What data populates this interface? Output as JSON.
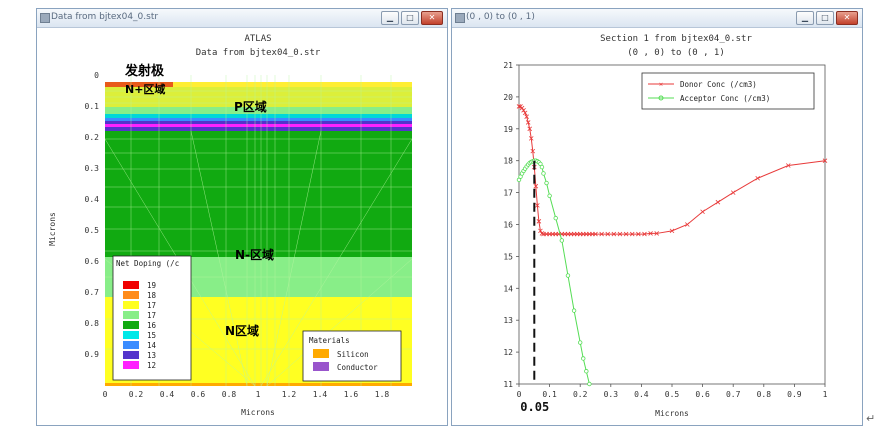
{
  "left_window": {
    "title": "Data from bjtex04_0.str",
    "plot_title": "ATLAS",
    "plot_subtitle": "Data from bjtex04_0.str",
    "xlabel": "Microns",
    "ylabel": "Microns",
    "x_ticks": [
      "0",
      "0.2",
      "0.4",
      "0.6",
      "0.8",
      "1",
      "1.2",
      "1.4",
      "1.6",
      "1.8"
    ],
    "y_ticks": [
      "0",
      "0.1",
      "0.2",
      "0.3",
      "0.4",
      "0.5",
      "0.6",
      "0.7",
      "0.8",
      "0.9"
    ],
    "annotations": {
      "emitter": "发射极",
      "n_plus": "N+区域",
      "p_region": "P区域",
      "n_minus": "N-区域",
      "n_region": "N区域"
    },
    "doping_legend": {
      "title": "Net Doping (/c",
      "items": [
        {
          "label": "19",
          "color": "#f00000"
        },
        {
          "label": "18",
          "color": "#ff8c1a"
        },
        {
          "label": "17",
          "color": "#ffff22"
        },
        {
          "label": "17",
          "color": "#88ee88"
        },
        {
          "label": "16",
          "color": "#11aa11"
        },
        {
          "label": "15",
          "color": "#00e8e8"
        },
        {
          "label": "14",
          "color": "#3b8cff"
        },
        {
          "label": "13",
          "color": "#5533cc"
        },
        {
          "label": "12",
          "color": "#ff22ff"
        }
      ]
    },
    "materials_legend": {
      "title": "Materials",
      "items": [
        {
          "label": "Silicon",
          "color": "#ffaa00"
        },
        {
          "label": "Conductor",
          "color": "#9955cc"
        }
      ]
    }
  },
  "right_window": {
    "title": "(0 , 0) to (0 , 1)",
    "plot_title": "Section 1 from bjtex04_0.str",
    "plot_subtitle": "(0 , 0) to (0 , 1)",
    "marker_label": "0.05",
    "chart_data": {
      "type": "line",
      "xlabel": "Microns",
      "ylabel": "",
      "xlim": [
        0,
        1
      ],
      "ylim": [
        11,
        21
      ],
      "x_ticks": [
        "0",
        "0.1",
        "0.2",
        "0.3",
        "0.4",
        "0.5",
        "0.6",
        "0.7",
        "0.8",
        "0.9",
        "1"
      ],
      "y_ticks": [
        "11",
        "12",
        "13",
        "14",
        "15",
        "16",
        "17",
        "18",
        "19",
        "20",
        "21"
      ],
      "legend_position": "top-right",
      "vertical_marker_x": 0.05,
      "series": [
        {
          "name": "Donor Conc (/cm3)",
          "color": "#e83a3a",
          "marker": "x",
          "x": [
            0,
            0.005,
            0.01,
            0.015,
            0.02,
            0.025,
            0.03,
            0.035,
            0.04,
            0.045,
            0.05,
            0.055,
            0.06,
            0.065,
            0.07,
            0.075,
            0.08,
            0.09,
            0.1,
            0.11,
            0.12,
            0.13,
            0.14,
            0.15,
            0.16,
            0.17,
            0.18,
            0.19,
            0.2,
            0.21,
            0.22,
            0.23,
            0.24,
            0.25,
            0.27,
            0.29,
            0.31,
            0.33,
            0.35,
            0.37,
            0.39,
            0.41,
            0.43,
            0.45,
            0.5,
            0.55,
            0.6,
            0.65,
            0.7,
            0.78,
            0.88,
            1.0
          ],
          "y": [
            19.7,
            19.7,
            19.65,
            19.58,
            19.5,
            19.38,
            19.2,
            19.0,
            18.7,
            18.3,
            17.8,
            17.2,
            16.6,
            16.1,
            15.8,
            15.72,
            15.7,
            15.7,
            15.7,
            15.7,
            15.7,
            15.7,
            15.7,
            15.7,
            15.7,
            15.7,
            15.7,
            15.7,
            15.7,
            15.7,
            15.7,
            15.7,
            15.7,
            15.7,
            15.7,
            15.7,
            15.7,
            15.7,
            15.7,
            15.7,
            15.7,
            15.7,
            15.72,
            15.72,
            15.8,
            16.0,
            16.4,
            16.7,
            17.0,
            17.45,
            17.85,
            18.0
          ]
        },
        {
          "name": "Acceptor Conc (/cm3)",
          "color": "#55dd55",
          "marker": "o",
          "x": [
            0,
            0.005,
            0.01,
            0.015,
            0.02,
            0.025,
            0.03,
            0.035,
            0.04,
            0.045,
            0.05,
            0.055,
            0.06,
            0.065,
            0.07,
            0.075,
            0.08,
            0.09,
            0.1,
            0.12,
            0.14,
            0.16,
            0.18,
            0.2,
            0.21,
            0.22,
            0.23
          ],
          "y": [
            17.4,
            17.5,
            17.6,
            17.68,
            17.75,
            17.82,
            17.88,
            17.93,
            17.96,
            17.98,
            18.0,
            18.0,
            17.98,
            17.95,
            17.9,
            17.8,
            17.6,
            17.3,
            16.9,
            16.2,
            15.5,
            14.4,
            13.3,
            12.3,
            11.8,
            11.4,
            10.95
          ]
        }
      ]
    }
  }
}
